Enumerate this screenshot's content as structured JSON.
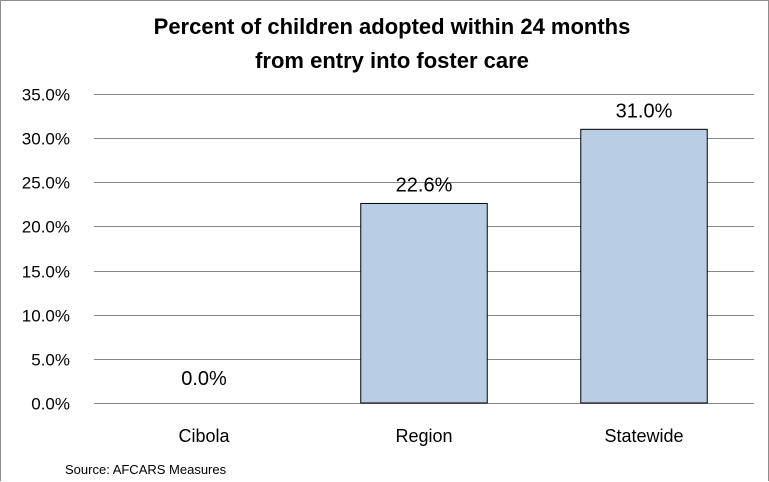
{
  "chart_data": {
    "type": "bar",
    "title_lines": [
      "Percent of children adopted within 24 months",
      "from entry into foster care"
    ],
    "categories": [
      "Cibola",
      "Region",
      "Statewide"
    ],
    "values": [
      0.0,
      22.6,
      31.0
    ],
    "value_labels": [
      "0.0%",
      "22.6%",
      "31.0%"
    ],
    "ylim": [
      0,
      35
    ],
    "yticks": [
      0,
      5,
      10,
      15,
      20,
      25,
      30,
      35
    ],
    "ytick_labels": [
      "0.0%",
      "5.0%",
      "10.0%",
      "15.0%",
      "20.0%",
      "25.0%",
      "30.0%",
      "35.0%"
    ],
    "xlabel": "",
    "ylabel": "",
    "grid": true,
    "legend": "none",
    "bar_color": "#b9cde5",
    "source": "Source:  AFCARS Measures"
  }
}
